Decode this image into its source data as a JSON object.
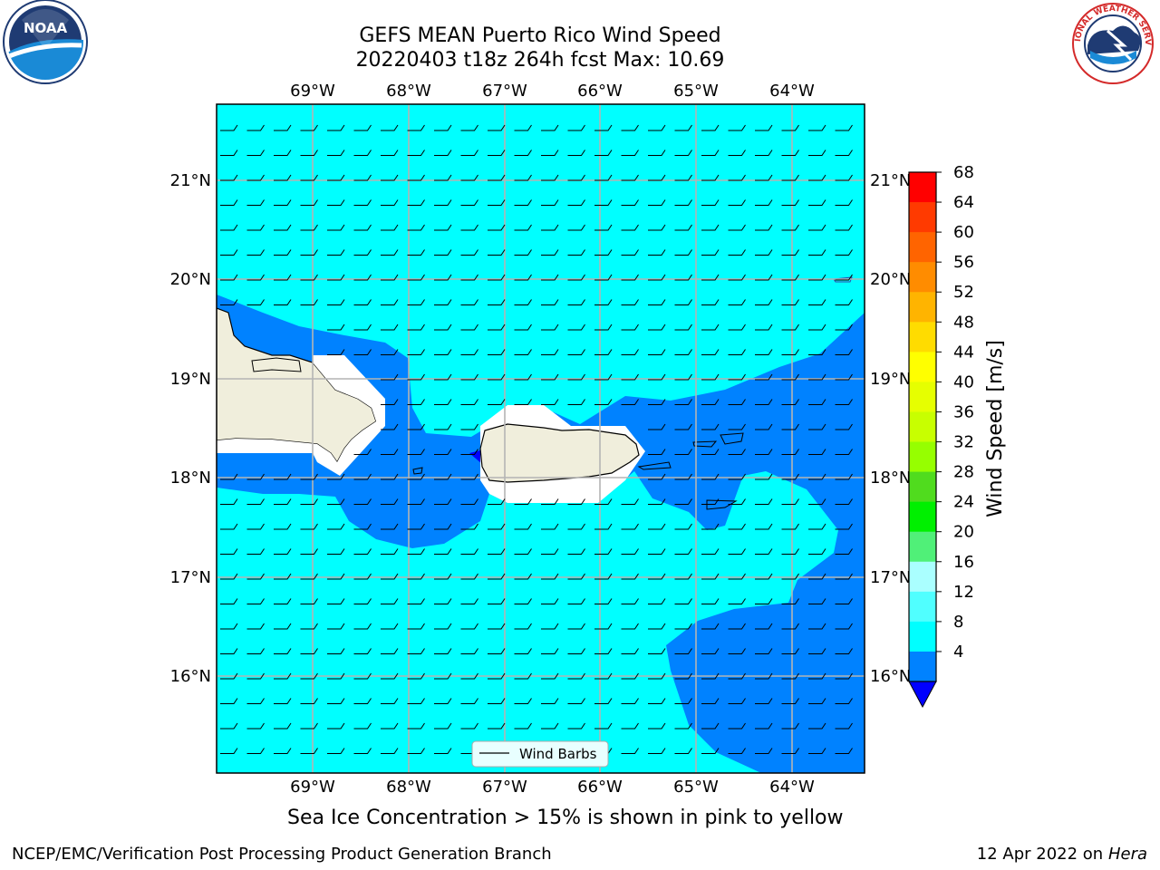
{
  "title_line1": "GEFS MEAN Puerto Rico Wind Speed",
  "title_line2": "20220403 t18z 264h fcst   Max: 10.69",
  "lon_labels": [
    "69°W",
    "68°W",
    "67°W",
    "66°W",
    "65°W",
    "64°W"
  ],
  "lat_labels": [
    "21°N",
    "20°N",
    "19°N",
    "18°N",
    "17°N",
    "16°N"
  ],
  "map_extent": {
    "lon_min": -70.0,
    "lon_max": -63.3,
    "lat_min": 15.0,
    "lat_max": 21.7
  },
  "colorbar": {
    "label": "Wind Speed [m/s]",
    "ticks": [
      "68",
      "64",
      "60",
      "56",
      "52",
      "48",
      "44",
      "40",
      "36",
      "32",
      "28",
      "24",
      "20",
      "16",
      "12",
      "8",
      "4"
    ],
    "colors": [
      "#ff0000",
      "#ff3a00",
      "#ff6400",
      "#ff8c00",
      "#ffb400",
      "#ffdc00",
      "#ffff00",
      "#e6ff00",
      "#c8ff00",
      "#96ff00",
      "#50dc1e",
      "#00f000",
      "#50f078",
      "#aaffff",
      "#50ffff",
      "#00ffff",
      "#0082ff"
    ],
    "under_color": "#0000ff"
  },
  "legend_label": "Wind Barbs",
  "subnote": "Sea Ice Concentration > 15% is shown in pink to yellow",
  "footer_left": "NCEP/EMC/Verification Post Processing Product Generation Branch",
  "footer_date": "12 Apr 2022 on ",
  "footer_machine": "Hera",
  "colors": {
    "land": "#f0eedc",
    "ocean_8_12": "#00ffff",
    "ocean_4_8": "#0082ff",
    "grid": "#b4b4b4"
  },
  "logos": {
    "left": "noaa-logo",
    "right": "nws-logo",
    "left_text": "NOAA",
    "right_text": "NATIONAL WEATHER SERVICE"
  }
}
